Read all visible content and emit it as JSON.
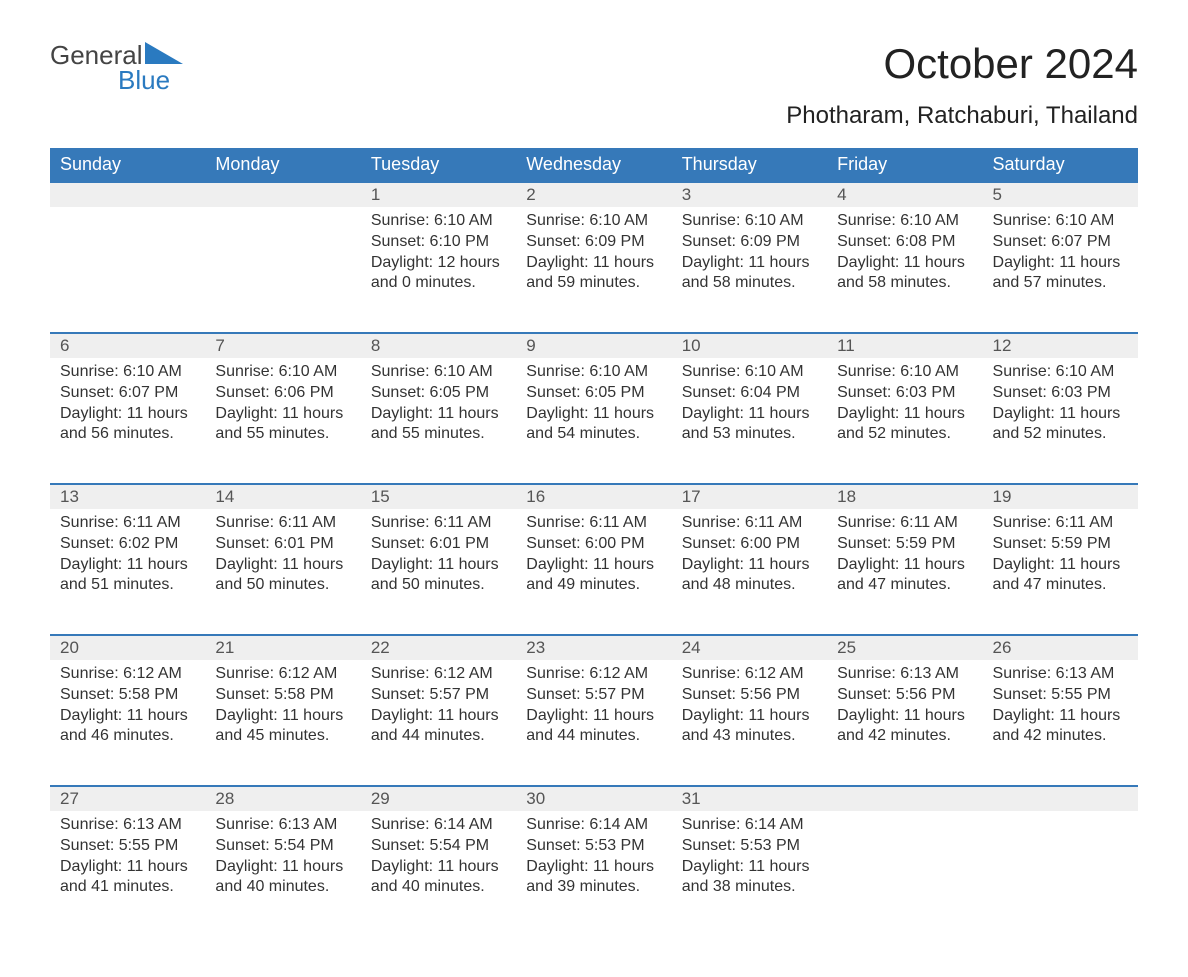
{
  "logo": {
    "text1": "General",
    "text2": "Blue",
    "accent_color": "#2a7ac0",
    "text_color": "#444444"
  },
  "header": {
    "month_title": "October 2024",
    "location": "Photharam, Ratchaburi, Thailand"
  },
  "styling": {
    "header_bg": "#3679b9",
    "header_fg": "#ffffff",
    "daynum_bg": "#efefef",
    "daynum_fg": "#555555",
    "body_fg": "#333333",
    "row_border_color": "#3679b9",
    "title_fontsize": 42,
    "location_fontsize": 24,
    "dayheader_fontsize": 18,
    "daynum_fontsize": 17,
    "body_fontsize": 16,
    "background": "#ffffff"
  },
  "day_headers": [
    "Sunday",
    "Monday",
    "Tuesday",
    "Wednesday",
    "Thursday",
    "Friday",
    "Saturday"
  ],
  "weeks": [
    {
      "days": [
        null,
        null,
        {
          "num": "1",
          "sunrise": "Sunrise: 6:10 AM",
          "sunset": "Sunset: 6:10 PM",
          "day1": "Daylight: 12 hours",
          "day2": "and 0 minutes."
        },
        {
          "num": "2",
          "sunrise": "Sunrise: 6:10 AM",
          "sunset": "Sunset: 6:09 PM",
          "day1": "Daylight: 11 hours",
          "day2": "and 59 minutes."
        },
        {
          "num": "3",
          "sunrise": "Sunrise: 6:10 AM",
          "sunset": "Sunset: 6:09 PM",
          "day1": "Daylight: 11 hours",
          "day2": "and 58 minutes."
        },
        {
          "num": "4",
          "sunrise": "Sunrise: 6:10 AM",
          "sunset": "Sunset: 6:08 PM",
          "day1": "Daylight: 11 hours",
          "day2": "and 58 minutes."
        },
        {
          "num": "5",
          "sunrise": "Sunrise: 6:10 AM",
          "sunset": "Sunset: 6:07 PM",
          "day1": "Daylight: 11 hours",
          "day2": "and 57 minutes."
        }
      ]
    },
    {
      "days": [
        {
          "num": "6",
          "sunrise": "Sunrise: 6:10 AM",
          "sunset": "Sunset: 6:07 PM",
          "day1": "Daylight: 11 hours",
          "day2": "and 56 minutes."
        },
        {
          "num": "7",
          "sunrise": "Sunrise: 6:10 AM",
          "sunset": "Sunset: 6:06 PM",
          "day1": "Daylight: 11 hours",
          "day2": "and 55 minutes."
        },
        {
          "num": "8",
          "sunrise": "Sunrise: 6:10 AM",
          "sunset": "Sunset: 6:05 PM",
          "day1": "Daylight: 11 hours",
          "day2": "and 55 minutes."
        },
        {
          "num": "9",
          "sunrise": "Sunrise: 6:10 AM",
          "sunset": "Sunset: 6:05 PM",
          "day1": "Daylight: 11 hours",
          "day2": "and 54 minutes."
        },
        {
          "num": "10",
          "sunrise": "Sunrise: 6:10 AM",
          "sunset": "Sunset: 6:04 PM",
          "day1": "Daylight: 11 hours",
          "day2": "and 53 minutes."
        },
        {
          "num": "11",
          "sunrise": "Sunrise: 6:10 AM",
          "sunset": "Sunset: 6:03 PM",
          "day1": "Daylight: 11 hours",
          "day2": "and 52 minutes."
        },
        {
          "num": "12",
          "sunrise": "Sunrise: 6:10 AM",
          "sunset": "Sunset: 6:03 PM",
          "day1": "Daylight: 11 hours",
          "day2": "and 52 minutes."
        }
      ]
    },
    {
      "days": [
        {
          "num": "13",
          "sunrise": "Sunrise: 6:11 AM",
          "sunset": "Sunset: 6:02 PM",
          "day1": "Daylight: 11 hours",
          "day2": "and 51 minutes."
        },
        {
          "num": "14",
          "sunrise": "Sunrise: 6:11 AM",
          "sunset": "Sunset: 6:01 PM",
          "day1": "Daylight: 11 hours",
          "day2": "and 50 minutes."
        },
        {
          "num": "15",
          "sunrise": "Sunrise: 6:11 AM",
          "sunset": "Sunset: 6:01 PM",
          "day1": "Daylight: 11 hours",
          "day2": "and 50 minutes."
        },
        {
          "num": "16",
          "sunrise": "Sunrise: 6:11 AM",
          "sunset": "Sunset: 6:00 PM",
          "day1": "Daylight: 11 hours",
          "day2": "and 49 minutes."
        },
        {
          "num": "17",
          "sunrise": "Sunrise: 6:11 AM",
          "sunset": "Sunset: 6:00 PM",
          "day1": "Daylight: 11 hours",
          "day2": "and 48 minutes."
        },
        {
          "num": "18",
          "sunrise": "Sunrise: 6:11 AM",
          "sunset": "Sunset: 5:59 PM",
          "day1": "Daylight: 11 hours",
          "day2": "and 47 minutes."
        },
        {
          "num": "19",
          "sunrise": "Sunrise: 6:11 AM",
          "sunset": "Sunset: 5:59 PM",
          "day1": "Daylight: 11 hours",
          "day2": "and 47 minutes."
        }
      ]
    },
    {
      "days": [
        {
          "num": "20",
          "sunrise": "Sunrise: 6:12 AM",
          "sunset": "Sunset: 5:58 PM",
          "day1": "Daylight: 11 hours",
          "day2": "and 46 minutes."
        },
        {
          "num": "21",
          "sunrise": "Sunrise: 6:12 AM",
          "sunset": "Sunset: 5:58 PM",
          "day1": "Daylight: 11 hours",
          "day2": "and 45 minutes."
        },
        {
          "num": "22",
          "sunrise": "Sunrise: 6:12 AM",
          "sunset": "Sunset: 5:57 PM",
          "day1": "Daylight: 11 hours",
          "day2": "and 44 minutes."
        },
        {
          "num": "23",
          "sunrise": "Sunrise: 6:12 AM",
          "sunset": "Sunset: 5:57 PM",
          "day1": "Daylight: 11 hours",
          "day2": "and 44 minutes."
        },
        {
          "num": "24",
          "sunrise": "Sunrise: 6:12 AM",
          "sunset": "Sunset: 5:56 PM",
          "day1": "Daylight: 11 hours",
          "day2": "and 43 minutes."
        },
        {
          "num": "25",
          "sunrise": "Sunrise: 6:13 AM",
          "sunset": "Sunset: 5:56 PM",
          "day1": "Daylight: 11 hours",
          "day2": "and 42 minutes."
        },
        {
          "num": "26",
          "sunrise": "Sunrise: 6:13 AM",
          "sunset": "Sunset: 5:55 PM",
          "day1": "Daylight: 11 hours",
          "day2": "and 42 minutes."
        }
      ]
    },
    {
      "days": [
        {
          "num": "27",
          "sunrise": "Sunrise: 6:13 AM",
          "sunset": "Sunset: 5:55 PM",
          "day1": "Daylight: 11 hours",
          "day2": "and 41 minutes."
        },
        {
          "num": "28",
          "sunrise": "Sunrise: 6:13 AM",
          "sunset": "Sunset: 5:54 PM",
          "day1": "Daylight: 11 hours",
          "day2": "and 40 minutes."
        },
        {
          "num": "29",
          "sunrise": "Sunrise: 6:14 AM",
          "sunset": "Sunset: 5:54 PM",
          "day1": "Daylight: 11 hours",
          "day2": "and 40 minutes."
        },
        {
          "num": "30",
          "sunrise": "Sunrise: 6:14 AM",
          "sunset": "Sunset: 5:53 PM",
          "day1": "Daylight: 11 hours",
          "day2": "and 39 minutes."
        },
        {
          "num": "31",
          "sunrise": "Sunrise: 6:14 AM",
          "sunset": "Sunset: 5:53 PM",
          "day1": "Daylight: 11 hours",
          "day2": "and 38 minutes."
        },
        null,
        null
      ]
    }
  ]
}
